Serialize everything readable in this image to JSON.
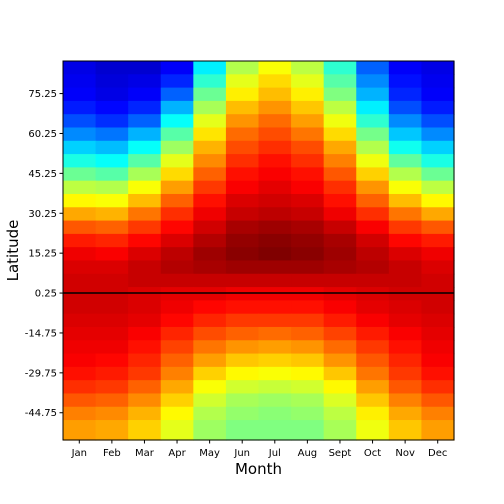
{
  "chart_data": {
    "type": "heatmap",
    "title": "",
    "xlabel": "Month",
    "ylabel": "Latitude",
    "categories": [
      "Jan",
      "Feb",
      "Mar",
      "Apr",
      "May",
      "Jun",
      "Jul",
      "Aug",
      "Sept",
      "Oct",
      "Nov",
      "Dec"
    ],
    "ylim": [
      -55,
      87.5
    ],
    "yticks": [
      75.25,
      60.25,
      45.25,
      30.25,
      15.25,
      0.25,
      -14.75,
      -29.75,
      -44.75
    ],
    "ytick_labels": [
      "75.25",
      "60.25",
      "45.25",
      "30.25",
      "15.25",
      "0.25",
      "-14.75",
      "-29.75",
      "-44.75"
    ],
    "reference_line_y": 0.25,
    "colormap": "jet",
    "grid": false,
    "legend": "none",
    "latitudes": [
      85,
      80,
      75,
      70,
      65,
      60,
      55,
      50,
      45,
      40,
      35,
      30,
      25,
      20,
      15,
      10,
      5,
      0,
      -5,
      -10,
      -15,
      -20,
      -25,
      -30,
      -35,
      -40,
      -45,
      -50
    ],
    "values": [
      [
        0.1,
        0.08,
        0.08,
        0.12,
        0.36,
        0.55,
        0.62,
        0.56,
        0.42,
        0.22,
        0.12,
        0.1
      ],
      [
        0.11,
        0.09,
        0.1,
        0.16,
        0.42,
        0.6,
        0.66,
        0.6,
        0.46,
        0.26,
        0.14,
        0.11
      ],
      [
        0.12,
        0.1,
        0.12,
        0.22,
        0.48,
        0.64,
        0.69,
        0.64,
        0.5,
        0.3,
        0.16,
        0.12
      ],
      [
        0.15,
        0.13,
        0.16,
        0.3,
        0.54,
        0.69,
        0.73,
        0.68,
        0.56,
        0.36,
        0.2,
        0.15
      ],
      [
        0.2,
        0.17,
        0.22,
        0.38,
        0.6,
        0.73,
        0.77,
        0.72,
        0.61,
        0.42,
        0.26,
        0.2
      ],
      [
        0.26,
        0.24,
        0.3,
        0.46,
        0.65,
        0.77,
        0.8,
        0.76,
        0.66,
        0.49,
        0.32,
        0.26
      ],
      [
        0.33,
        0.31,
        0.38,
        0.53,
        0.7,
        0.8,
        0.83,
        0.8,
        0.71,
        0.55,
        0.39,
        0.33
      ],
      [
        0.4,
        0.38,
        0.46,
        0.6,
        0.74,
        0.83,
        0.86,
        0.83,
        0.75,
        0.61,
        0.47,
        0.4
      ],
      [
        0.48,
        0.46,
        0.54,
        0.66,
        0.78,
        0.86,
        0.88,
        0.86,
        0.79,
        0.67,
        0.55,
        0.48
      ],
      [
        0.56,
        0.55,
        0.62,
        0.72,
        0.82,
        0.88,
        0.9,
        0.88,
        0.83,
        0.73,
        0.62,
        0.56
      ],
      [
        0.63,
        0.62,
        0.69,
        0.78,
        0.86,
        0.91,
        0.92,
        0.91,
        0.86,
        0.78,
        0.69,
        0.63
      ],
      [
        0.71,
        0.7,
        0.76,
        0.83,
        0.89,
        0.93,
        0.94,
        0.93,
        0.89,
        0.83,
        0.76,
        0.71
      ],
      [
        0.79,
        0.78,
        0.82,
        0.87,
        0.92,
        0.96,
        0.97,
        0.96,
        0.93,
        0.88,
        0.82,
        0.79
      ],
      [
        0.85,
        0.84,
        0.87,
        0.91,
        0.95,
        0.98,
        0.99,
        0.98,
        0.96,
        0.92,
        0.87,
        0.85
      ],
      [
        0.89,
        0.88,
        0.91,
        0.94,
        0.97,
        0.99,
        1.0,
        0.99,
        0.97,
        0.94,
        0.91,
        0.89
      ],
      [
        0.91,
        0.91,
        0.93,
        0.95,
        0.96,
        0.97,
        0.97,
        0.97,
        0.96,
        0.95,
        0.93,
        0.91
      ],
      [
        0.92,
        0.92,
        0.93,
        0.93,
        0.93,
        0.93,
        0.93,
        0.93,
        0.93,
        0.93,
        0.93,
        0.92
      ],
      [
        0.92,
        0.92,
        0.91,
        0.9,
        0.9,
        0.89,
        0.89,
        0.89,
        0.9,
        0.91,
        0.92,
        0.92
      ],
      [
        0.92,
        0.92,
        0.91,
        0.89,
        0.87,
        0.86,
        0.86,
        0.86,
        0.88,
        0.9,
        0.91,
        0.92
      ],
      [
        0.91,
        0.91,
        0.9,
        0.87,
        0.84,
        0.82,
        0.82,
        0.82,
        0.85,
        0.88,
        0.9,
        0.91
      ],
      [
        0.9,
        0.9,
        0.88,
        0.84,
        0.8,
        0.78,
        0.77,
        0.78,
        0.81,
        0.85,
        0.88,
        0.9
      ],
      [
        0.89,
        0.89,
        0.86,
        0.81,
        0.76,
        0.73,
        0.72,
        0.73,
        0.77,
        0.82,
        0.86,
        0.89
      ],
      [
        0.88,
        0.87,
        0.84,
        0.78,
        0.72,
        0.68,
        0.67,
        0.68,
        0.73,
        0.79,
        0.84,
        0.88
      ],
      [
        0.86,
        0.85,
        0.82,
        0.75,
        0.67,
        0.63,
        0.62,
        0.63,
        0.68,
        0.76,
        0.82,
        0.86
      ],
      [
        0.83,
        0.82,
        0.78,
        0.71,
        0.62,
        0.58,
        0.57,
        0.58,
        0.63,
        0.72,
        0.79,
        0.83
      ],
      [
        0.79,
        0.78,
        0.74,
        0.67,
        0.58,
        0.54,
        0.53,
        0.54,
        0.59,
        0.68,
        0.75,
        0.79
      ],
      [
        0.75,
        0.74,
        0.7,
        0.63,
        0.55,
        0.52,
        0.51,
        0.52,
        0.56,
        0.64,
        0.71,
        0.75
      ],
      [
        0.72,
        0.71,
        0.67,
        0.6,
        0.53,
        0.5,
        0.5,
        0.5,
        0.54,
        0.61,
        0.68,
        0.72
      ]
    ]
  }
}
